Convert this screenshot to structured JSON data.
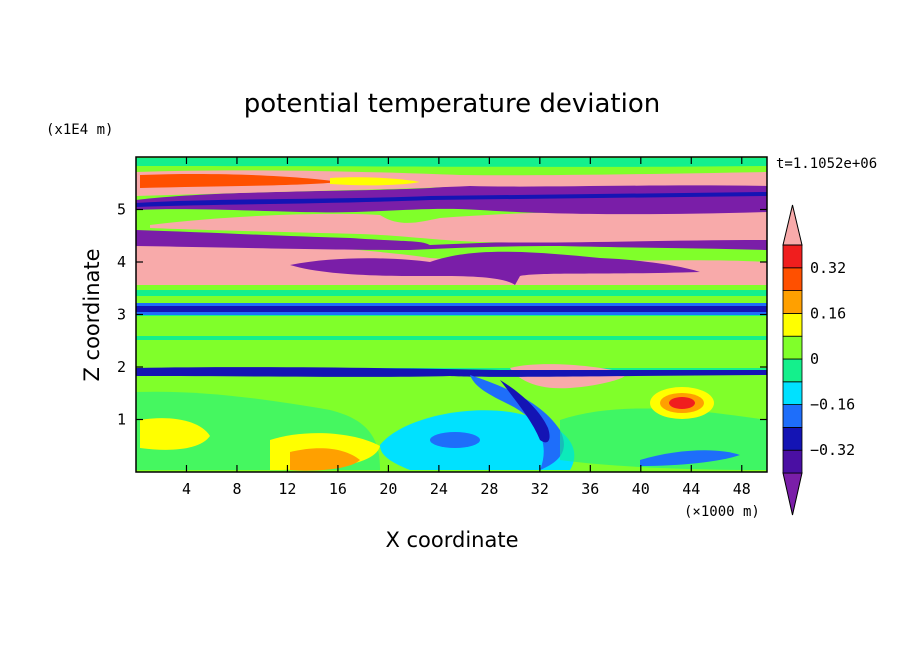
{
  "chart_data": {
    "type": "heatmap",
    "title": "potential temperature deviation",
    "xlabel": "X coordinate",
    "ylabel": "Z coordinate",
    "x_scale_label": "(×1000 m)",
    "y_scale_label": "(x1E4 m)",
    "time_label": "t=1.1052e+06",
    "x_ticks": [
      4,
      8,
      12,
      16,
      20,
      24,
      28,
      32,
      36,
      40,
      44,
      48
    ],
    "y_ticks": [
      1,
      2,
      3,
      4,
      5
    ],
    "xlim": [
      0,
      50
    ],
    "ylim": [
      0,
      6
    ],
    "colorbar": {
      "levels": [
        -0.4,
        -0.32,
        -0.24,
        -0.16,
        -0.08,
        0,
        0.08,
        0.16,
        0.24,
        0.32,
        0.4
      ],
      "tick_labels": [
        "0.32",
        "0.16",
        "0",
        "−0.16",
        "−0.32"
      ],
      "tick_values": [
        0.32,
        0.16,
        0,
        -0.16,
        -0.32
      ],
      "colors": [
        "#7a1ea8",
        "#4a0fa3",
        "#1414b4",
        "#1e6efa",
        "#00e1ff",
        "#14f08c",
        "#80ff2a",
        "#ffff00",
        "#ffa000",
        "#ff5000",
        "#f01e1e",
        "#f8aaaa"
      ]
    }
  }
}
